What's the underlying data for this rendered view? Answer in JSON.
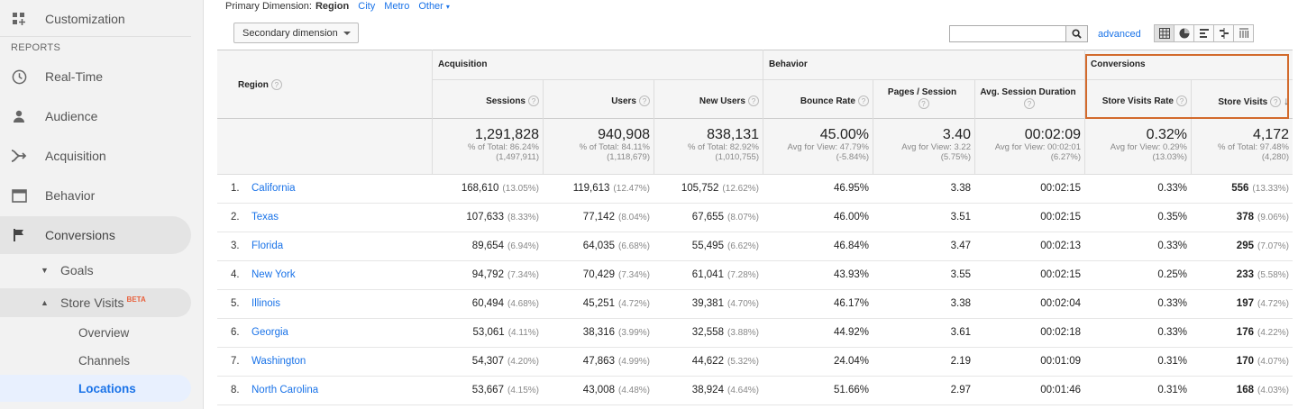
{
  "sidebar": {
    "customization": "Customization",
    "reports_header": "REPORTS",
    "items": [
      {
        "label": "Real-Time"
      },
      {
        "label": "Audience"
      },
      {
        "label": "Acquisition"
      },
      {
        "label": "Behavior"
      },
      {
        "label": "Conversions"
      }
    ],
    "goals": "Goals",
    "store_visits": "Store Visits",
    "beta": "BETA",
    "leaves": [
      "Overview",
      "Channels",
      "Locations"
    ]
  },
  "toolbar": {
    "primary_dimension_label": "Primary Dimension:",
    "primary_current": "Region",
    "options": [
      "City",
      "Metro",
      "Other"
    ],
    "secondary_dimension": "Secondary dimension",
    "advanced": "advanced"
  },
  "table": {
    "dimension_header": "Region",
    "groups": {
      "acquisition": "Acquisition",
      "behavior": "Behavior",
      "conversions": "Conversions"
    },
    "columns": [
      "Sessions",
      "Users",
      "New Users",
      "Bounce Rate",
      "Pages / Session",
      "Avg. Session Duration",
      "Store Visits Rate",
      "Store Visits"
    ],
    "totals": [
      {
        "big": "1,291,828",
        "l1": "% of Total: 86.24%",
        "l2": "(1,497,911)"
      },
      {
        "big": "940,908",
        "l1": "% of Total: 84.11%",
        "l2": "(1,118,679)"
      },
      {
        "big": "838,131",
        "l1": "% of Total: 82.92%",
        "l2": "(1,010,755)"
      },
      {
        "big": "45.00%",
        "l1": "Avg for View: 47.79%",
        "l2": "(-5.84%)"
      },
      {
        "big": "3.40",
        "l1": "Avg for View: 3.22",
        "l2": "(5.75%)"
      },
      {
        "big": "00:02:09",
        "l1": "Avg for View: 00:02:01",
        "l2": "(6.27%)"
      },
      {
        "big": "0.32%",
        "l1": "Avg for View: 0.29%",
        "l2": "(13.03%)"
      },
      {
        "big": "4,172",
        "l1": "% of Total: 97.48%",
        "l2": "(4,280)"
      }
    ],
    "rows": [
      {
        "idx": "1.",
        "region": "California",
        "sessions": "168,610",
        "sessions_pct": "(13.05%)",
        "users": "119,613",
        "users_pct": "(12.47%)",
        "new_users": "105,752",
        "new_users_pct": "(12.62%)",
        "bounce": "46.95%",
        "pages": "3.38",
        "duration": "00:02:15",
        "sv_rate": "0.33%",
        "sv": "556",
        "sv_pct": "(13.33%)"
      },
      {
        "idx": "2.",
        "region": "Texas",
        "sessions": "107,633",
        "sessions_pct": "(8.33%)",
        "users": "77,142",
        "users_pct": "(8.04%)",
        "new_users": "67,655",
        "new_users_pct": "(8.07%)",
        "bounce": "46.00%",
        "pages": "3.51",
        "duration": "00:02:15",
        "sv_rate": "0.35%",
        "sv": "378",
        "sv_pct": "(9.06%)"
      },
      {
        "idx": "3.",
        "region": "Florida",
        "sessions": "89,654",
        "sessions_pct": "(6.94%)",
        "users": "64,035",
        "users_pct": "(6.68%)",
        "new_users": "55,495",
        "new_users_pct": "(6.62%)",
        "bounce": "46.84%",
        "pages": "3.47",
        "duration": "00:02:13",
        "sv_rate": "0.33%",
        "sv": "295",
        "sv_pct": "(7.07%)"
      },
      {
        "idx": "4.",
        "region": "New York",
        "sessions": "94,792",
        "sessions_pct": "(7.34%)",
        "users": "70,429",
        "users_pct": "(7.34%)",
        "new_users": "61,041",
        "new_users_pct": "(7.28%)",
        "bounce": "43.93%",
        "pages": "3.55",
        "duration": "00:02:15",
        "sv_rate": "0.25%",
        "sv": "233",
        "sv_pct": "(5.58%)"
      },
      {
        "idx": "5.",
        "region": "Illinois",
        "sessions": "60,494",
        "sessions_pct": "(4.68%)",
        "users": "45,251",
        "users_pct": "(4.72%)",
        "new_users": "39,381",
        "new_users_pct": "(4.70%)",
        "bounce": "46.17%",
        "pages": "3.38",
        "duration": "00:02:04",
        "sv_rate": "0.33%",
        "sv": "197",
        "sv_pct": "(4.72%)"
      },
      {
        "idx": "6.",
        "region": "Georgia",
        "sessions": "53,061",
        "sessions_pct": "(4.11%)",
        "users": "38,316",
        "users_pct": "(3.99%)",
        "new_users": "32,558",
        "new_users_pct": "(3.88%)",
        "bounce": "44.92%",
        "pages": "3.61",
        "duration": "00:02:18",
        "sv_rate": "0.33%",
        "sv": "176",
        "sv_pct": "(4.22%)"
      },
      {
        "idx": "7.",
        "region": "Washington",
        "sessions": "54,307",
        "sessions_pct": "(4.20%)",
        "users": "47,863",
        "users_pct": "(4.99%)",
        "new_users": "44,622",
        "new_users_pct": "(5.32%)",
        "bounce": "24.04%",
        "pages": "2.19",
        "duration": "00:01:09",
        "sv_rate": "0.31%",
        "sv": "170",
        "sv_pct": "(4.07%)"
      },
      {
        "idx": "8.",
        "region": "North Carolina",
        "sessions": "53,667",
        "sessions_pct": "(4.15%)",
        "users": "43,008",
        "users_pct": "(4.48%)",
        "new_users": "38,924",
        "new_users_pct": "(4.64%)",
        "bounce": "51.66%",
        "pages": "2.97",
        "duration": "00:01:46",
        "sv_rate": "0.31%",
        "sv": "168",
        "sv_pct": "(4.03%)"
      }
    ]
  }
}
